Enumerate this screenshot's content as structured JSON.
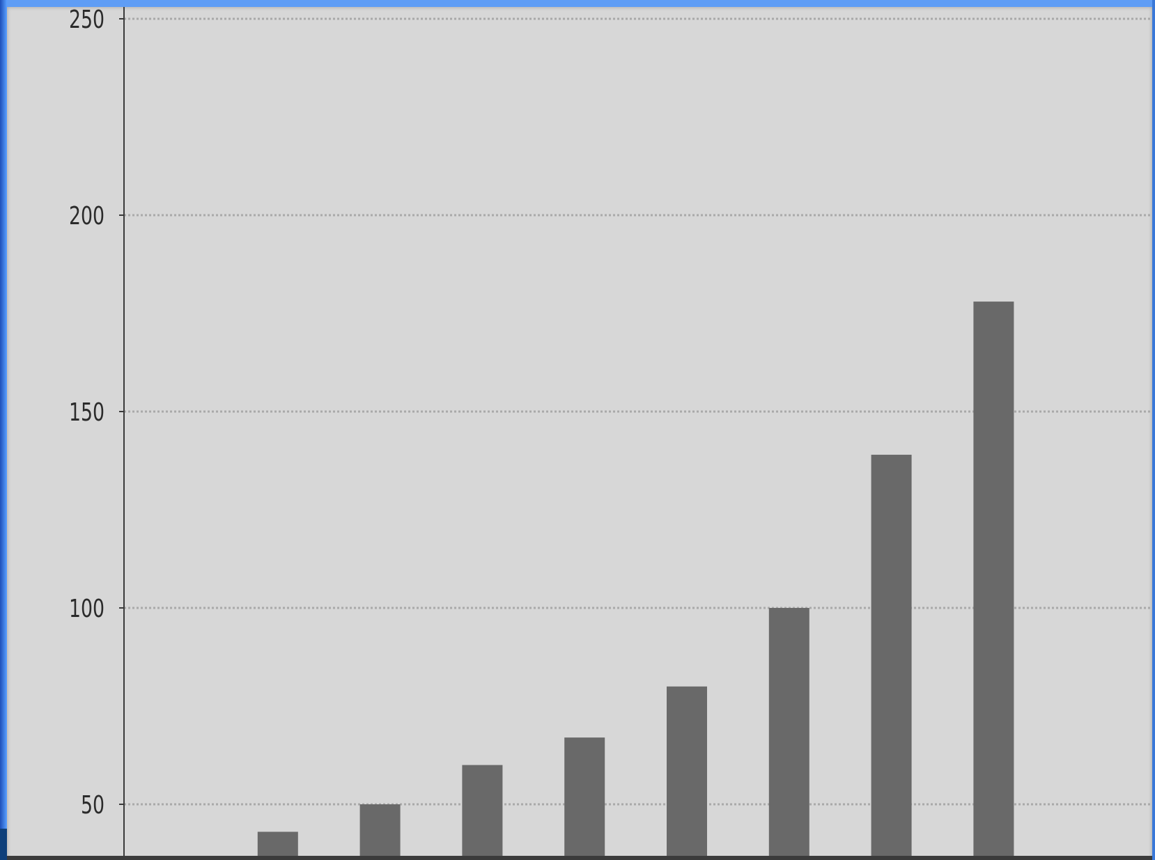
{
  "chart_data": {
    "type": "bar",
    "title": "",
    "xlabel": "",
    "ylabel": "",
    "ylim": [
      36,
      252
    ],
    "yticks": [
      50,
      100,
      150,
      200,
      250
    ],
    "ytick_labels": [
      "50",
      "100",
      "150",
      "200",
      "250"
    ],
    "grid": "horizontal dotted",
    "categories": [
      "",
      "",
      "",
      "",
      "",
      "",
      "",
      "",
      "",
      ""
    ],
    "values": [
      null,
      43,
      50,
      60,
      67,
      80,
      100,
      139,
      178,
      null
    ],
    "colors": {
      "bar": "#696969",
      "plot_background": "#d7d7d7",
      "gridline": "#a9a9a9",
      "axis": "#3a3a3a",
      "frame": "#2f7fe6"
    }
  }
}
